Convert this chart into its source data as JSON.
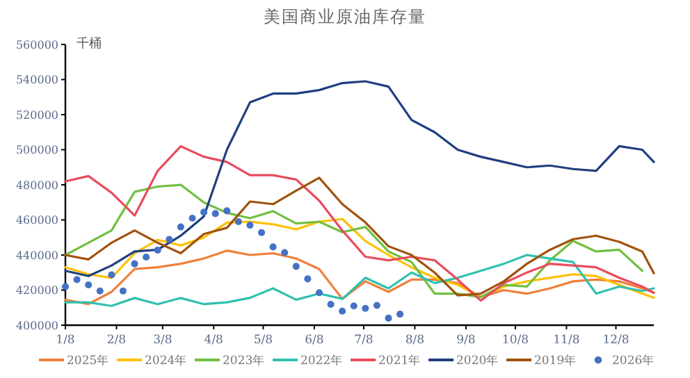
{
  "chart_data": {
    "type": "line",
    "title": "美国商业原油库存量",
    "ylabel": "千桶",
    "x": [
      "--01-08",
      "--01-22",
      "--02-05",
      "--02-19",
      "--03-05",
      "--03-19",
      "--04-02",
      "--04-16",
      "--04-30",
      "--05-14",
      "--05-28",
      "--06-11",
      "--06-25",
      "--07-09",
      "--07-23",
      "--08-06",
      "--08-20",
      "--09-03",
      "--09-17",
      "--10-01",
      "--10-15",
      "--10-29",
      "--11-12",
      "--11-26",
      "--12-10",
      "--12-24",
      "--12-31"
    ],
    "xlim": [
      "--01-08",
      "--12-31"
    ],
    "xticks": [
      {
        "value": "--01-08",
        "label": "1/8"
      },
      {
        "value": "--02-08",
        "label": "2/8"
      },
      {
        "value": "--03-08",
        "label": "3/8"
      },
      {
        "value": "--04-08",
        "label": "4/8"
      },
      {
        "value": "--05-08",
        "label": "5/8"
      },
      {
        "value": "--06-08",
        "label": "6/8"
      },
      {
        "value": "--07-08",
        "label": "7/8"
      },
      {
        "value": "--08-08",
        "label": "8/8"
      },
      {
        "value": "--09-08",
        "label": "9/8"
      },
      {
        "value": "--10-08",
        "label": "10/8"
      },
      {
        "value": "--11-08",
        "label": "11/8"
      },
      {
        "value": "--12-08",
        "label": "12/8"
      }
    ],
    "ylim": [
      400000,
      560000
    ],
    "yticks": [
      400000,
      420000,
      440000,
      460000,
      480000,
      500000,
      520000,
      540000,
      560000
    ],
    "grid": false,
    "legend": "bottom",
    "marker": "none",
    "line_style": "solid",
    "series": [
      {
        "name": "2025年",
        "color": "#f07f3a",
        "values": [
          414500,
          412000,
          419000,
          432000,
          433000,
          435000,
          438000,
          442500,
          440000,
          441000,
          438000,
          432000,
          415000,
          425000,
          419000,
          426000,
          426000,
          424000,
          416000,
          420000,
          418000,
          421000,
          425000,
          426000,
          425000,
          421000,
          418500
        ]
      },
      {
        "name": "2024年",
        "color": "#ffc000",
        "values": [
          433000,
          429000,
          427000,
          441000,
          448600,
          445500,
          450000,
          458500,
          459000,
          457500,
          454600,
          459000,
          460500,
          448000,
          440000,
          433000,
          427000,
          423000,
          416000,
          422000,
          425000,
          427000,
          429000,
          428000,
          423000,
          418000,
          415600
        ]
      },
      {
        "name": "2023年",
        "color": "#70c040",
        "values": [
          440000,
          447000,
          454000,
          476000,
          479000,
          480000,
          470000,
          464000,
          461000,
          465000,
          458000,
          459000,
          453000,
          456000,
          442000,
          436000,
          418000,
          418000,
          416000,
          423000,
          422000,
          437000,
          448000,
          442000,
          443000,
          431000,
          null
        ]
      },
      {
        "name": "2022年",
        "color": "#30c0b0",
        "values": [
          413000,
          413000,
          411000,
          415500,
          412000,
          415500,
          412000,
          413000,
          415600,
          421000,
          414500,
          418000,
          415000,
          427000,
          421000,
          430000,
          424000,
          427000,
          431000,
          435000,
          440000,
          438000,
          436000,
          418000,
          422000,
          419500,
          421000
        ]
      },
      {
        "name": "2021年",
        "color": "#e84c5c",
        "values": [
          482000,
          485000,
          475500,
          462500,
          488000,
          502000,
          496000,
          493000,
          485500,
          485500,
          483000,
          471000,
          454000,
          439000,
          437000,
          439000,
          437000,
          426000,
          414000,
          424000,
          430000,
          435000,
          434000,
          433000,
          427000,
          422000,
          418500
        ]
      },
      {
        "name": "2020年",
        "color": "#203f80",
        "values": [
          431000,
          428000,
          434000,
          442000,
          443000,
          451000,
          462000,
          500000,
          527000,
          532000,
          532000,
          534000,
          538000,
          539000,
          536000,
          517000,
          510000,
          500000,
          496000,
          493000,
          490000,
          491000,
          489000,
          488000,
          502000,
          500000,
          493000
        ]
      },
      {
        "name": "2019年",
        "color": "#a0520c",
        "values": [
          440000,
          437500,
          447000,
          454000,
          447000,
          441000,
          452000,
          455500,
          470500,
          469000,
          476700,
          484000,
          469000,
          458600,
          445000,
          440000,
          430000,
          417000,
          418000,
          425000,
          435000,
          443000,
          449000,
          451000,
          447500,
          442000,
          429600
        ]
      },
      {
        "name": "2026年",
        "type": "scatter",
        "marker": "circle",
        "color": "#4472c4",
        "x": [
          "--01-08",
          "--01-15",
          "--01-22",
          "--01-29",
          "--02-05",
          "--02-12",
          "--02-19",
          "--02-26",
          "--03-05",
          "--03-12",
          "--03-19",
          "--03-26",
          "--04-02",
          "--04-09",
          "--04-16",
          "--04-23",
          "--04-30",
          "--05-07",
          "--05-14",
          "--05-21",
          "--05-28",
          "--06-04",
          "--06-11",
          "--06-18",
          "--06-25",
          "--07-02",
          "--07-09",
          "--07-16",
          "--07-23",
          "--07-30"
        ],
        "values": [
          422000,
          426000,
          423000,
          419500,
          428700,
          419500,
          435000,
          438800,
          442800,
          448900,
          456000,
          461000,
          464400,
          463600,
          465200,
          459000,
          457000,
          452800,
          444600,
          441400,
          433500,
          426400,
          418500,
          411900,
          408000,
          411000,
          409600,
          411300,
          404000,
          406300
        ]
      }
    ]
  }
}
